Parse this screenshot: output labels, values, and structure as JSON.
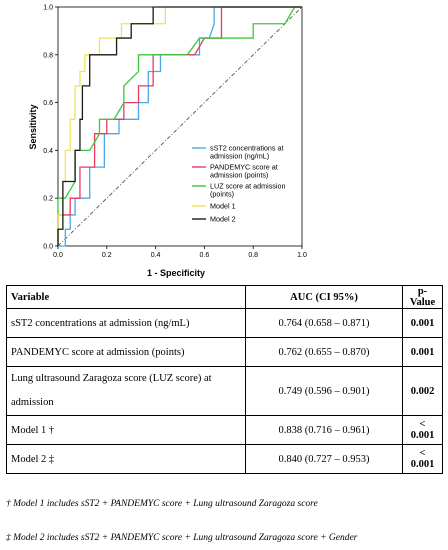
{
  "chart_data": {
    "type": "line",
    "title": "",
    "xlabel": "1 - Specificity",
    "ylabel": "Sensitivity",
    "xlim": [
      0,
      1
    ],
    "ylim": [
      0,
      1
    ],
    "x_ticks": [
      "0.0",
      "0.2",
      "0.4",
      "0.6",
      "0.8",
      "1.0"
    ],
    "y_ticks": [
      "0.0",
      "0.2",
      "0.4",
      "0.6",
      "0.8",
      "1.0"
    ],
    "grid": false,
    "legend_position": "bottom-right",
    "series": [
      {
        "name": "sST2 concentrations at admission (ng/mL)",
        "color": "#4da6e8",
        "points": [
          [
            0,
            0
          ],
          [
            0.03,
            0
          ],
          [
            0.03,
            0.07
          ],
          [
            0.05,
            0.07
          ],
          [
            0.05,
            0.13
          ],
          [
            0.07,
            0.13
          ],
          [
            0.07,
            0.2
          ],
          [
            0.13,
            0.2
          ],
          [
            0.13,
            0.33
          ],
          [
            0.19,
            0.33
          ],
          [
            0.19,
            0.47
          ],
          [
            0.25,
            0.47
          ],
          [
            0.25,
            0.53
          ],
          [
            0.33,
            0.53
          ],
          [
            0.33,
            0.6
          ],
          [
            0.37,
            0.6
          ],
          [
            0.37,
            0.73
          ],
          [
            0.42,
            0.73
          ],
          [
            0.42,
            0.8
          ],
          [
            0.58,
            0.8
          ],
          [
            0.58,
            0.87
          ],
          [
            0.62,
            0.87
          ],
          [
            0.64,
            0.93
          ],
          [
            0.64,
            1.0
          ],
          [
            1,
            1
          ]
        ]
      },
      {
        "name": "PANDEMYC score at admission (points)",
        "color": "#e83a5f",
        "points": [
          [
            0,
            0
          ],
          [
            0,
            0.13
          ],
          [
            0.05,
            0.13
          ],
          [
            0.05,
            0.2
          ],
          [
            0.09,
            0.2
          ],
          [
            0.09,
            0.33
          ],
          [
            0.15,
            0.33
          ],
          [
            0.15,
            0.47
          ],
          [
            0.2,
            0.47
          ],
          [
            0.2,
            0.53
          ],
          [
            0.27,
            0.53
          ],
          [
            0.27,
            0.6
          ],
          [
            0.33,
            0.6
          ],
          [
            0.33,
            0.67
          ],
          [
            0.39,
            0.67
          ],
          [
            0.39,
            0.8
          ],
          [
            0.56,
            0.8
          ],
          [
            0.6,
            0.87
          ],
          [
            0.67,
            0.87
          ],
          [
            0.67,
            1.0
          ],
          [
            1,
            1
          ]
        ]
      },
      {
        "name": "LUZ score at admission (points)",
        "color": "#3cc83c",
        "points": [
          [
            0,
            0
          ],
          [
            0,
            0.2
          ],
          [
            0.03,
            0.2
          ],
          [
            0.07,
            0.27
          ],
          [
            0.07,
            0.4
          ],
          [
            0.13,
            0.4
          ],
          [
            0.17,
            0.47
          ],
          [
            0.17,
            0.53
          ],
          [
            0.23,
            0.53
          ],
          [
            0.27,
            0.6
          ],
          [
            0.27,
            0.67
          ],
          [
            0.33,
            0.73
          ],
          [
            0.33,
            0.8
          ],
          [
            0.53,
            0.8
          ],
          [
            0.58,
            0.87
          ],
          [
            0.8,
            0.87
          ],
          [
            0.8,
            0.93
          ],
          [
            0.93,
            0.93
          ],
          [
            0.97,
            1.0
          ],
          [
            1,
            1
          ]
        ]
      },
      {
        "name": "Model 1",
        "color": "#f0e35a",
        "points": [
          [
            0,
            0
          ],
          [
            0,
            0.13
          ],
          [
            0.02,
            0.13
          ],
          [
            0.02,
            0.27
          ],
          [
            0.03,
            0.27
          ],
          [
            0.03,
            0.4
          ],
          [
            0.05,
            0.4
          ],
          [
            0.05,
            0.53
          ],
          [
            0.07,
            0.53
          ],
          [
            0.07,
            0.67
          ],
          [
            0.09,
            0.67
          ],
          [
            0.09,
            0.73
          ],
          [
            0.11,
            0.73
          ],
          [
            0.11,
            0.8
          ],
          [
            0.17,
            0.8
          ],
          [
            0.17,
            0.87
          ],
          [
            0.26,
            0.87
          ],
          [
            0.26,
            0.93
          ],
          [
            0.44,
            0.93
          ],
          [
            0.44,
            1.0
          ],
          [
            1,
            1
          ]
        ]
      },
      {
        "name": "Model 2",
        "color": "#1a1a1a",
        "points": [
          [
            0,
            0
          ],
          [
            0,
            0.07
          ],
          [
            0.02,
            0.07
          ],
          [
            0.02,
            0.27
          ],
          [
            0.07,
            0.27
          ],
          [
            0.07,
            0.4
          ],
          [
            0.09,
            0.4
          ],
          [
            0.09,
            0.53
          ],
          [
            0.1,
            0.53
          ],
          [
            0.1,
            0.67
          ],
          [
            0.13,
            0.67
          ],
          [
            0.13,
            0.8
          ],
          [
            0.24,
            0.8
          ],
          [
            0.24,
            0.87
          ],
          [
            0.3,
            0.87
          ],
          [
            0.3,
            0.93
          ],
          [
            0.39,
            0.93
          ],
          [
            0.39,
            1.0
          ],
          [
            1,
            1
          ]
        ]
      }
    ],
    "reference_line": [
      [
        0,
        0
      ],
      [
        1,
        1
      ]
    ]
  },
  "table": {
    "headers": {
      "variable": "Variable",
      "auc": "AUC (CI 95%)",
      "p_value": "p-Value"
    },
    "rows": [
      {
        "variable": "sST2 concentrations at admission (ng/mL)",
        "auc": "0.764 (0.658 – 0.871)",
        "p_value": "0.001"
      },
      {
        "variable": "PANDEMYC score at admission (points)",
        "auc": "0.762 (0.655 – 0.870)",
        "p_value": "0.001"
      },
      {
        "variable_line1": "Lung ultrasound Zaragoza score (LUZ score) at",
        "variable_line2": "admission",
        "auc": "0.749 (0.596 – 0.901)",
        "p_value": "0.002"
      },
      {
        "variable": "Model 1 †",
        "auc": "0.838 (0.716 – 0.961)",
        "p_value": "< 0.001"
      },
      {
        "variable": "Model 2 ‡",
        "auc": "0.840 (0.727 – 0.953)",
        "p_value": "< 0.001"
      }
    ]
  },
  "footnotes": {
    "model1": "† Model 1 includes sST2 + PANDEMYC score + Lung ultrasound Zaragoza score",
    "model2": "‡ Model 2 includes sST2 + PANDEMYC score + Lung ultrasound Zaragoza score + Gender"
  },
  "legend": [
    {
      "line1": "sST2 concentrations at",
      "line2": "admission (ng/mL)"
    },
    {
      "line1": "PANDEMYC score at",
      "line2": "admission (points)"
    },
    {
      "line1": "LUZ score at admission",
      "line2": "(points)"
    },
    {
      "line1": "Model 1",
      "line2": ""
    },
    {
      "line1": "Model 2",
      "line2": ""
    }
  ]
}
